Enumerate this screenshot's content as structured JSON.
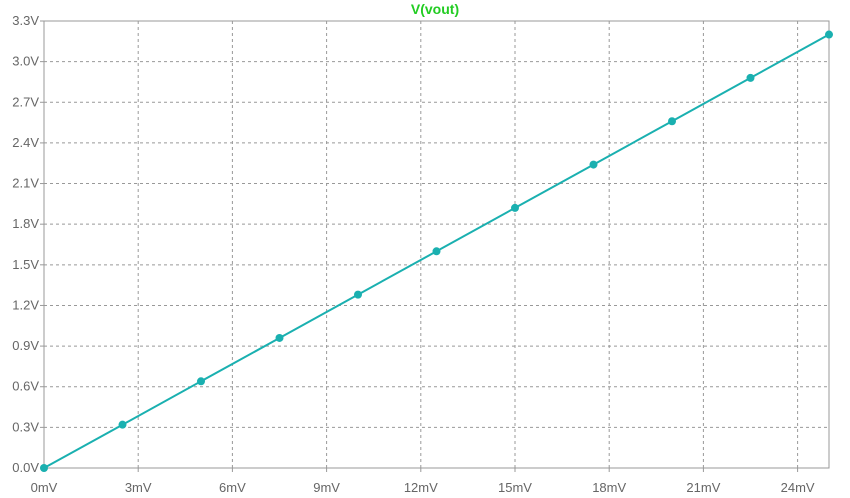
{
  "chart_data": {
    "type": "line",
    "title": "V(vout)",
    "x": [
      0,
      2.5,
      5,
      7.5,
      10,
      12.5,
      15,
      17.5,
      20,
      22.5,
      25
    ],
    "series": [
      {
        "name": "V(vout)",
        "values": [
          0,
          0.32,
          0.64,
          0.96,
          1.28,
          1.6,
          1.92,
          2.24,
          2.56,
          2.88,
          3.2
        ],
        "color": "#1ab0b0"
      }
    ],
    "xlim": [
      0,
      25
    ],
    "ylim": [
      0,
      3.3
    ],
    "x_ticks": [
      0,
      3,
      6,
      9,
      12,
      15,
      18,
      21,
      24
    ],
    "x_tick_labels": [
      "0mV",
      "3mV",
      "6mV",
      "9mV",
      "12mV",
      "15mV",
      "18mV",
      "21mV",
      "24mV"
    ],
    "y_ticks": [
      0,
      0.3,
      0.6,
      0.9,
      1.2,
      1.5,
      1.8,
      2.1,
      2.4,
      2.7,
      3.0,
      3.3
    ],
    "y_tick_labels": [
      "0.0V",
      "0.3V",
      "0.6V",
      "0.9V",
      "1.2V",
      "1.5V",
      "1.8V",
      "2.1V",
      "2.4V",
      "2.7V",
      "3.0V",
      "3.3V"
    ],
    "grid": true,
    "colors": {
      "title": "#22cc22",
      "axis_text": "#666666",
      "grid": "#999999",
      "frame": "#999999",
      "trace": "#1ab0b0"
    }
  }
}
